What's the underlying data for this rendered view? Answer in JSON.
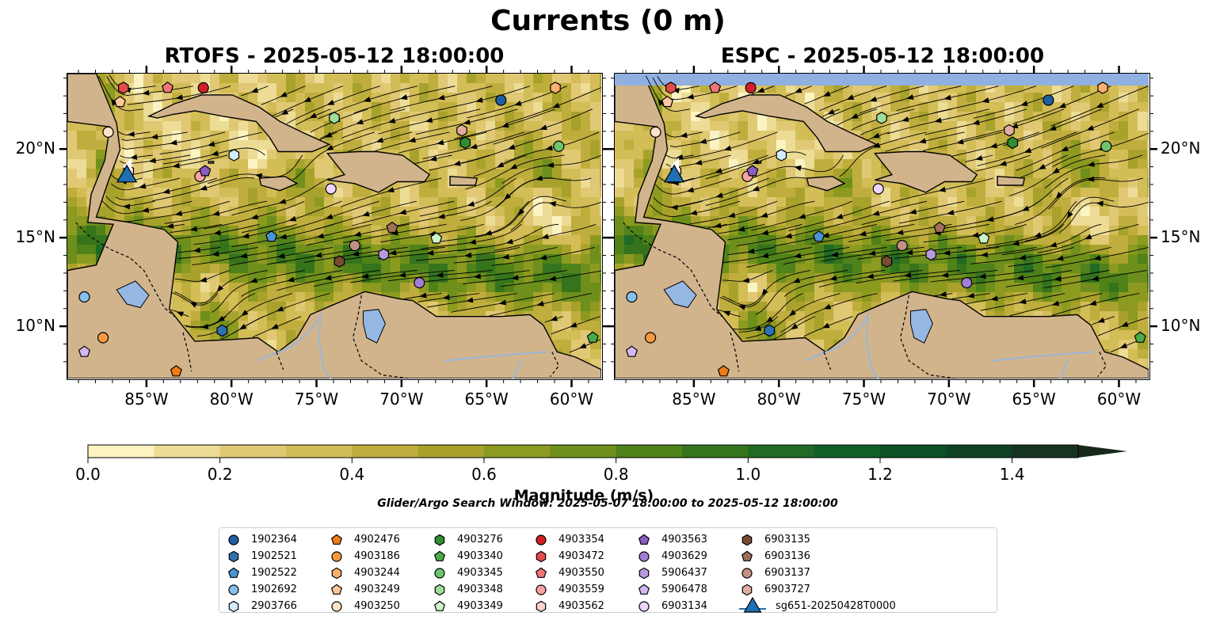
{
  "figure": {
    "title": "Currents (0 m)",
    "panels": [
      {
        "title": "RTOFS - 2025-05-12 18:00:00",
        "ice_band": false
      },
      {
        "title": "ESPC - 2025-05-12 18:00:00",
        "ice_band": true
      }
    ],
    "lon_labels": [
      "85°W",
      "80°W",
      "75°W",
      "70°W",
      "65°W",
      "60°W"
    ],
    "lon_values": [
      -85,
      -80,
      -75,
      -70,
      -65,
      -60
    ],
    "lat_labels": [
      "20°N",
      "15°N",
      "10°N"
    ],
    "lat_values": [
      20,
      15,
      10
    ],
    "extent": {
      "lon_min": -89.7,
      "lon_max": -58.3,
      "lat_min": 7.1,
      "lat_max": 24.3
    },
    "colorbar": {
      "label": "Magnitude (m/s)",
      "tick_labels": [
        "0.0",
        "0.2",
        "0.4",
        "0.6",
        "0.8",
        "1.0",
        "1.2",
        "1.4"
      ],
      "range": [
        0,
        1.5
      ],
      "colors": [
        "#fbf3c2",
        "#ecdc95",
        "#e0c874",
        "#d3bd57",
        "#bfae3d",
        "#a8a22c",
        "#8c9a20",
        "#6e8f1b",
        "#4f8219",
        "#35741c",
        "#1f6a24",
        "#0f6128",
        "#0a5125",
        "#0e4223",
        "#153420",
        "#17281a"
      ]
    },
    "search_window": "Glider/Argo Search Window: 2025-05-07 18:00:00 to 2025-05-12 18:00:00",
    "land_color": "#d2b48c",
    "water_color": "#95b8e3"
  },
  "legend": {
    "entries": [
      {
        "label": "1902364",
        "marker": "circle",
        "color": "#1f5fa1"
      },
      {
        "label": "1902521",
        "marker": "hexagon",
        "color": "#2e72b5"
      },
      {
        "label": "1902522",
        "marker": "pentagon",
        "color": "#4a93d6"
      },
      {
        "label": "1902692",
        "marker": "circle",
        "color": "#86c0ec"
      },
      {
        "label": "2903766",
        "marker": "hexagon",
        "color": "#d3ecfb"
      },
      {
        "label": "4902476",
        "marker": "pentagon",
        "color": "#f07c17"
      },
      {
        "label": "4903186",
        "marker": "circle",
        "color": "#f9983f"
      },
      {
        "label": "4903244",
        "marker": "hexagon",
        "color": "#fbb06e"
      },
      {
        "label": "4903249",
        "marker": "pentagon",
        "color": "#fdc799"
      },
      {
        "label": "4903250",
        "marker": "circle",
        "color": "#fee3c8"
      },
      {
        "label": "4903276",
        "marker": "hexagon",
        "color": "#2f8e2f"
      },
      {
        "label": "4903340",
        "marker": "pentagon",
        "color": "#49ab49"
      },
      {
        "label": "4903345",
        "marker": "circle",
        "color": "#6cc46c"
      },
      {
        "label": "4903348",
        "marker": "hexagon",
        "color": "#9ede9a"
      },
      {
        "label": "4903349",
        "marker": "pentagon",
        "color": "#ccf2c7"
      },
      {
        "label": "4903354",
        "marker": "circle",
        "color": "#d21f26"
      },
      {
        "label": "4903472",
        "marker": "hexagon",
        "color": "#e34a4c"
      },
      {
        "label": "4903550",
        "marker": "pentagon",
        "color": "#f07479"
      },
      {
        "label": "4903559",
        "marker": "circle",
        "color": "#f6a3a3"
      },
      {
        "label": "4903562",
        "marker": "hexagon",
        "color": "#fcd2cd"
      },
      {
        "label": "4903563",
        "marker": "pentagon",
        "color": "#8a5dc2"
      },
      {
        "label": "4903629",
        "marker": "circle",
        "color": "#a07dd6"
      },
      {
        "label": "5906437",
        "marker": "hexagon",
        "color": "#b899e0"
      },
      {
        "label": "5906478",
        "marker": "pentagon",
        "color": "#d4b8ef"
      },
      {
        "label": "6903134",
        "marker": "circle",
        "color": "#ecd6fb"
      },
      {
        "label": "6903135",
        "marker": "hexagon",
        "color": "#7a4a35"
      },
      {
        "label": "6903136",
        "marker": "pentagon",
        "color": "#a0705a"
      },
      {
        "label": "6903137",
        "marker": "circle",
        "color": "#c29183"
      },
      {
        "label": "6903727",
        "marker": "hexagon",
        "color": "#e0aea0"
      },
      {
        "label": "sg651-20250428T0000",
        "marker": "triangle",
        "color": "#1f6fb2"
      }
    ]
  },
  "floats": [
    {
      "id": "4903354",
      "lon": -81.7,
      "lat": 23.5
    },
    {
      "id": "4903550",
      "lon": -83.8,
      "lat": 23.5
    },
    {
      "id": "4903472",
      "lon": -86.4,
      "lat": 23.5
    },
    {
      "id": "4903249",
      "lon": -86.6,
      "lat": 22.7
    },
    {
      "id": "4903250",
      "lon": -87.3,
      "lat": 21.0
    },
    {
      "id": "4903562",
      "lon": -86.1,
      "lat": 18.8
    },
    {
      "id": "4903559",
      "lon": -81.9,
      "lat": 18.5
    },
    {
      "id": "4903563",
      "lon": -81.6,
      "lat": 18.8
    },
    {
      "id": "2903766",
      "lon": -79.9,
      "lat": 19.7
    },
    {
      "id": "4903348",
      "lon": -74.0,
      "lat": 21.8
    },
    {
      "id": "6903134",
      "lon": -74.2,
      "lat": 17.8
    },
    {
      "id": "1902364",
      "lon": -64.2,
      "lat": 22.8
    },
    {
      "id": "4903244",
      "lon": -61.0,
      "lat": 23.5
    },
    {
      "id": "6903727",
      "lon": -66.5,
      "lat": 21.1
    },
    {
      "id": "4903276",
      "lon": -66.3,
      "lat": 20.4
    },
    {
      "id": "4903345",
      "lon": -60.8,
      "lat": 20.2
    },
    {
      "id": "1902522",
      "lon": -77.7,
      "lat": 15.1
    },
    {
      "id": "6903136",
      "lon": -70.6,
      "lat": 15.6
    },
    {
      "id": "4903349",
      "lon": -68.0,
      "lat": 15.0
    },
    {
      "id": "6903137",
      "lon": -72.8,
      "lat": 14.6
    },
    {
      "id": "5906437",
      "lon": -71.1,
      "lat": 14.1
    },
    {
      "id": "6903135",
      "lon": -73.7,
      "lat": 13.7
    },
    {
      "id": "4903629",
      "lon": -69.0,
      "lat": 12.5
    },
    {
      "id": "1902692",
      "lon": -88.7,
      "lat": 11.7
    },
    {
      "id": "1902521",
      "lon": -80.6,
      "lat": 9.8
    },
    {
      "id": "4903186",
      "lon": -87.6,
      "lat": 9.4
    },
    {
      "id": "5906478",
      "lon": -88.7,
      "lat": 8.6
    },
    {
      "id": "4902476",
      "lon": -83.3,
      "lat": 7.5
    },
    {
      "id": "4903340",
      "lon": -58.8,
      "lat": 9.4
    }
  ],
  "glider": {
    "id": "sg651-20250428T0000",
    "lon": -86.2,
    "lat": 18.5
  }
}
